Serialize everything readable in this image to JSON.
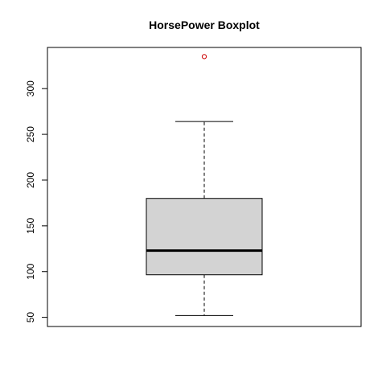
{
  "chart_data": {
    "type": "boxplot",
    "title": "HorsePower Boxplot",
    "xlabel": "",
    "ylabel": "",
    "ylim": [
      40,
      345
    ],
    "yticks": [
      50,
      100,
      150,
      200,
      250,
      300
    ],
    "box": {
      "lower_whisker": 52,
      "q1": 96.5,
      "median": 123,
      "q3": 180,
      "upper_whisker": 264
    },
    "outliers": [
      335
    ],
    "colors": {
      "box_fill": "#d3d3d3",
      "outlier": "#cc0000",
      "line": "#000000"
    }
  }
}
